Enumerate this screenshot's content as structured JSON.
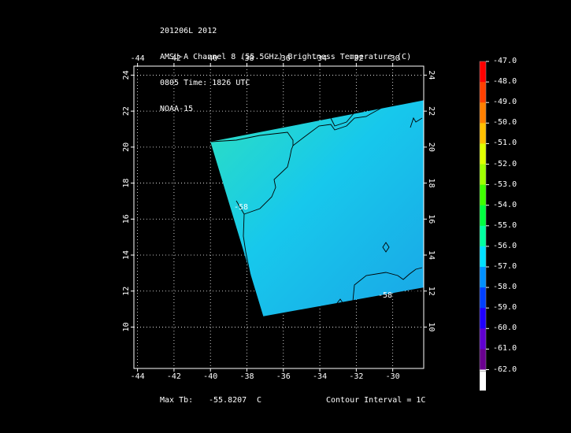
{
  "header": {
    "line1": "201206L 2012",
    "line2": "AMSU-A Channel 8 (55.5GHz) Brightness Temperature (C)",
    "line3": "0805 Time: 1826 UTC",
    "line4": "NOAA-15"
  },
  "axes": {
    "lon_ticks": [
      "-44",
      "-42",
      "-40",
      "-38",
      "-36",
      "-34",
      "-32",
      "-30"
    ],
    "lat_ticks": [
      "24",
      "22",
      "20",
      "18",
      "16",
      "14",
      "12",
      "10"
    ],
    "lon_range": [
      -44.2,
      -28.3
    ],
    "lat_range": [
      7.7,
      24.5
    ],
    "grid": "dotted"
  },
  "swath": {
    "corners_lonlat": [
      [
        -40.0,
        20.3
      ],
      [
        -28.3,
        22.6
      ],
      [
        -28.3,
        12.2
      ],
      [
        -37.1,
        10.6
      ]
    ],
    "colors": {
      "main": "#17c8ec",
      "nw": "#2de0c0",
      "se": "#1aa6e6"
    }
  },
  "contour_labels": [
    "-58",
    "-58"
  ],
  "colorbar": {
    "values": [
      "-47.0",
      "-48.0",
      "-49.0",
      "-50.0",
      "-51.0",
      "-52.0",
      "-53.0",
      "-54.0",
      "-55.0",
      "-56.0",
      "-57.0",
      "-58.0",
      "-59.0",
      "-60.0",
      "-61.0",
      "-62.0"
    ],
    "colors": [
      "#ff0000",
      "#ff4000",
      "#ff8000",
      "#ffc000",
      "#e0ff00",
      "#a0ff00",
      "#40ff00",
      "#00ff40",
      "#00ffa0",
      "#00e0ff",
      "#0090ff",
      "#0040ff",
      "#2000ff",
      "#6000d0",
      "#6a0090",
      "#ffffff"
    ]
  },
  "footer": {
    "max_label": "Max Tb:",
    "max_value": "-55.8207",
    "max_unit": "C",
    "contour_text": "Contour Interval = 1C"
  }
}
